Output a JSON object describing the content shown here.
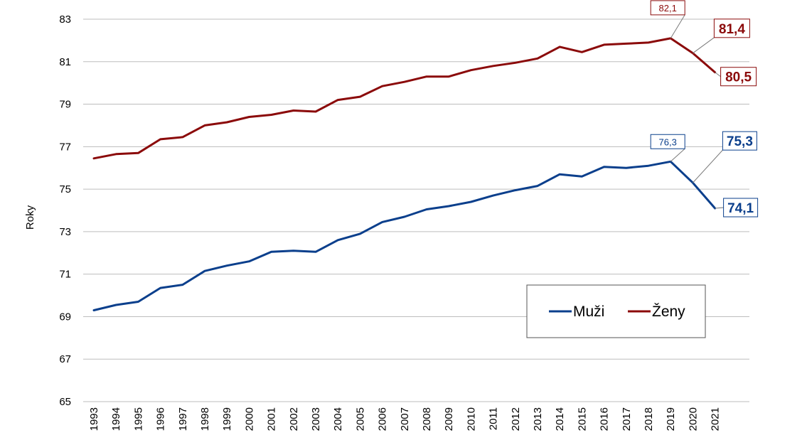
{
  "chart_data": {
    "type": "line",
    "ylabel": "Roky",
    "xlabel": "",
    "title": "",
    "ylim": [
      65,
      83
    ],
    "yticks": [
      65,
      67,
      69,
      71,
      73,
      75,
      77,
      79,
      81,
      83
    ],
    "grid": true,
    "legend_position": "bottom-right",
    "x": [
      "1993",
      "1994",
      "1995",
      "1996",
      "1997",
      "1998",
      "1999",
      "2000",
      "2001",
      "2002",
      "2003",
      "2004",
      "2005",
      "2006",
      "2007",
      "2008",
      "2009",
      "2010",
      "2011",
      "2012",
      "2013",
      "2014",
      "2015",
      "2016",
      "2017",
      "2018",
      "2019",
      "2020",
      "2021"
    ],
    "series": [
      {
        "name": "Muži",
        "color": "#0b3f8c",
        "values": [
          69.3,
          69.55,
          69.7,
          70.35,
          70.5,
          71.15,
          71.4,
          71.6,
          72.05,
          72.1,
          72.05,
          72.6,
          72.9,
          73.45,
          73.7,
          74.05,
          74.2,
          74.4,
          74.7,
          74.95,
          75.15,
          75.7,
          75.6,
          76.05,
          76.0,
          76.1,
          76.3,
          75.3,
          74.1
        ],
        "labels": [
          {
            "year": "2019",
            "text": "76,3",
            "style": "small"
          },
          {
            "year": "2020",
            "text": "75,3",
            "style": "big"
          },
          {
            "year": "2021",
            "text": "74,1",
            "style": "big"
          }
        ]
      },
      {
        "name": "Ženy",
        "color": "#8b0a0a",
        "values": [
          76.45,
          76.65,
          76.7,
          77.35,
          77.45,
          78.0,
          78.15,
          78.4,
          78.5,
          78.7,
          78.65,
          79.2,
          79.35,
          79.85,
          80.05,
          80.3,
          80.3,
          80.6,
          80.8,
          80.95,
          81.15,
          81.7,
          81.45,
          81.8,
          81.85,
          81.9,
          82.1,
          81.4,
          80.5
        ],
        "labels": [
          {
            "year": "2019",
            "text": "82,1",
            "style": "small"
          },
          {
            "year": "2020",
            "text": "81,4",
            "style": "big"
          },
          {
            "year": "2021",
            "text": "80,5",
            "style": "big"
          }
        ]
      }
    ]
  }
}
